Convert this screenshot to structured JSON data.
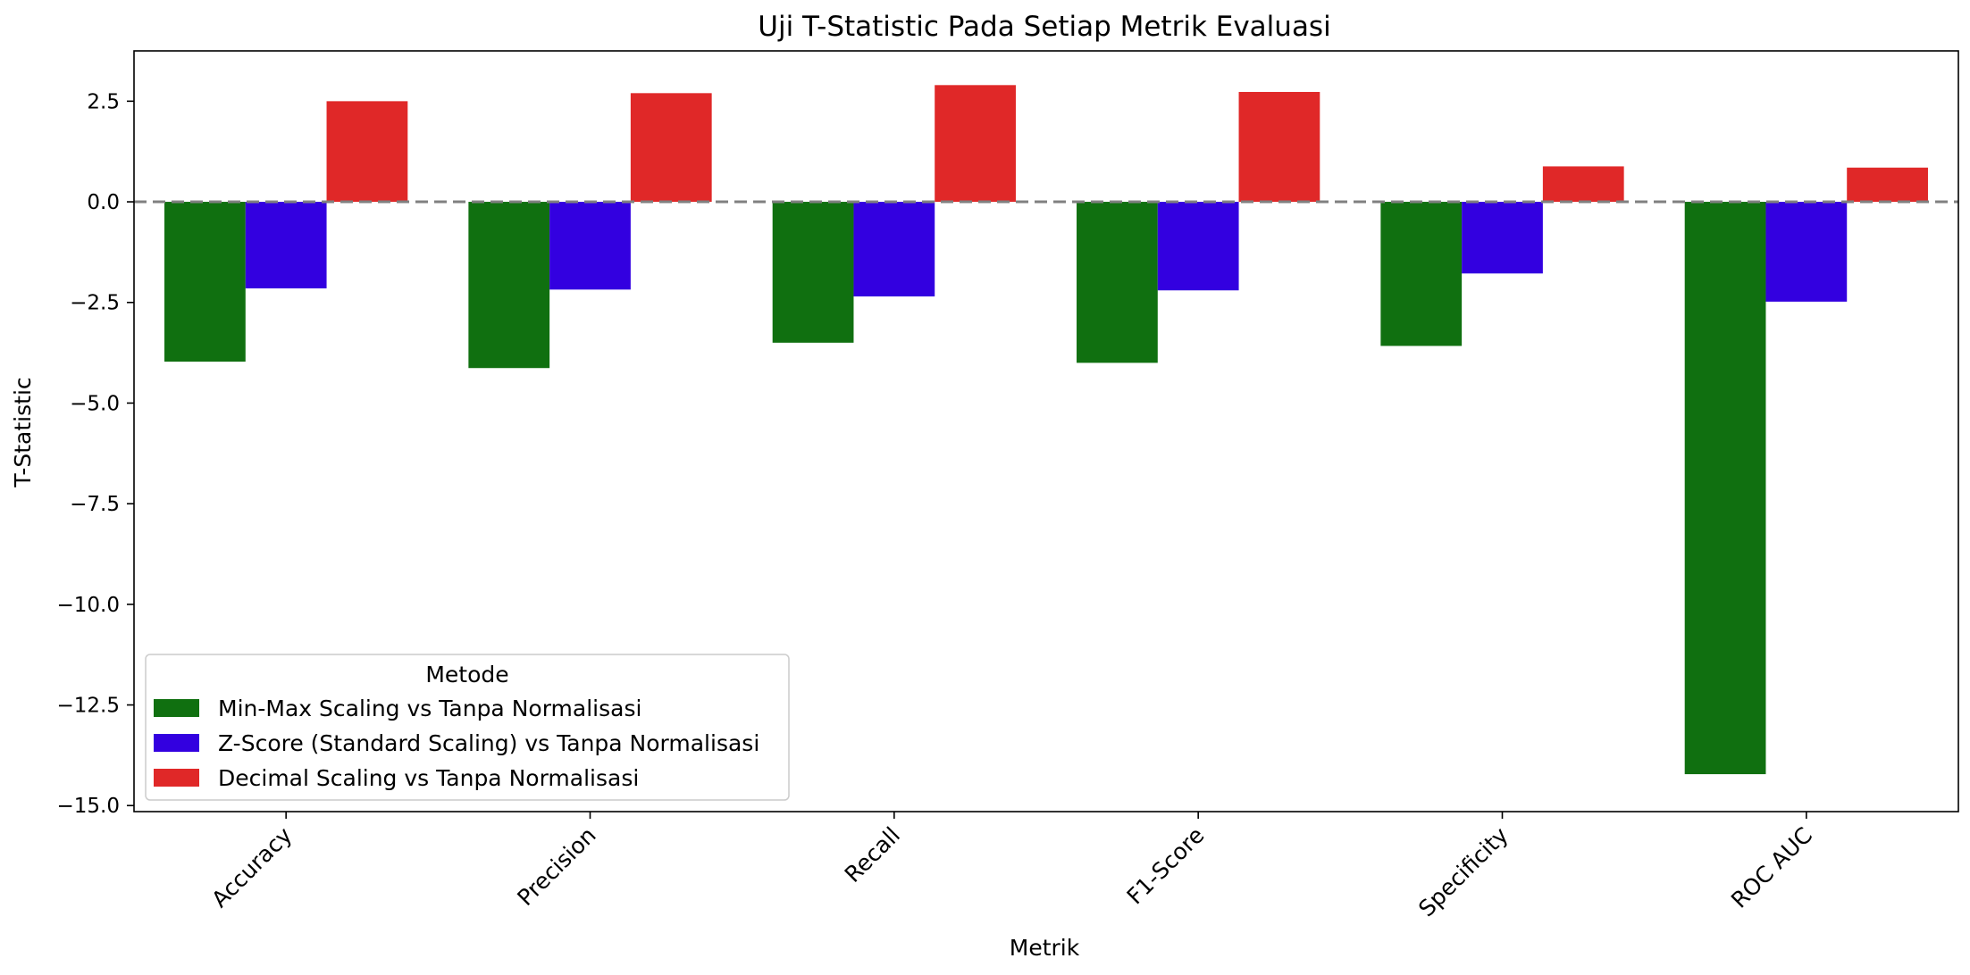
{
  "chart_data": {
    "type": "bar",
    "title": "Uji T-Statistic Pada Setiap Metrik Evaluasi",
    "xlabel": "Metrik",
    "ylabel": "T-Statistic",
    "categories": [
      "Accuracy",
      "Precision",
      "Recall",
      "F1-Score",
      "Specificity",
      "ROC AUC"
    ],
    "series": [
      {
        "name": "Min-Max Scaling vs Tanpa Normalisasi",
        "color": "#107010",
        "values": [
          -3.97,
          -4.13,
          -3.5,
          -4.0,
          -3.58,
          -14.22
        ]
      },
      {
        "name": "Z-Score (Standard Scaling) vs Tanpa Normalisasi",
        "color": "#3300e0",
        "values": [
          -2.15,
          -2.18,
          -2.35,
          -2.2,
          -1.78,
          -2.48
        ]
      },
      {
        "name": "Decimal Scaling vs Tanpa Normalisasi",
        "color": "#e02828",
        "values": [
          2.5,
          2.7,
          2.9,
          2.73,
          0.88,
          0.85
        ]
      }
    ],
    "ylim": [
      -15.15,
      3.75
    ],
    "yticks": [
      2.5,
      0.0,
      -2.5,
      -5.0,
      -7.5,
      -10.0,
      -12.5,
      -15.0
    ],
    "ytick_labels": [
      "2.5",
      "0.0",
      "−2.5",
      "−5.0",
      "−7.5",
      "−10.0",
      "−12.5",
      "−15.0"
    ],
    "reference_line": {
      "y": 0,
      "style": "dashed",
      "color": "#808080"
    },
    "grid": false,
    "legend": {
      "title": "Metode",
      "position": "lower-left"
    }
  }
}
